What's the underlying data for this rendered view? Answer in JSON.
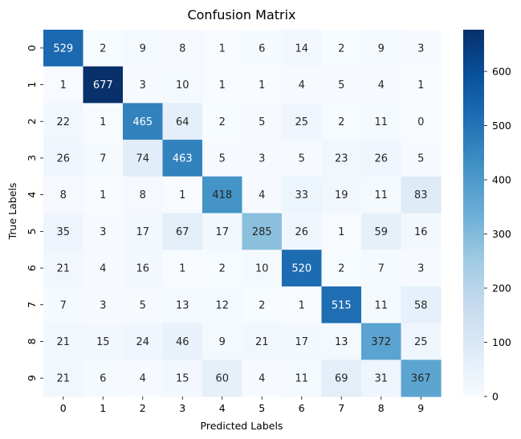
{
  "chart_data": {
    "type": "heatmap",
    "title": "Confusion Matrix",
    "xlabel": "Predicted Labels",
    "ylabel": "True Labels",
    "x_categories": [
      "0",
      "1",
      "2",
      "3",
      "4",
      "5",
      "6",
      "7",
      "8",
      "9"
    ],
    "y_categories": [
      "0",
      "1",
      "2",
      "3",
      "4",
      "5",
      "6",
      "7",
      "8",
      "9"
    ],
    "values": [
      [
        529,
        2,
        9,
        8,
        1,
        6,
        14,
        2,
        9,
        3
      ],
      [
        1,
        677,
        3,
        10,
        1,
        1,
        4,
        5,
        4,
        1
      ],
      [
        22,
        1,
        465,
        64,
        2,
        5,
        25,
        2,
        11,
        0
      ],
      [
        26,
        7,
        74,
        463,
        5,
        3,
        5,
        23,
        26,
        5
      ],
      [
        8,
        1,
        8,
        1,
        418,
        4,
        33,
        19,
        11,
        83
      ],
      [
        35,
        3,
        17,
        67,
        17,
        285,
        26,
        1,
        59,
        16
      ],
      [
        21,
        4,
        16,
        1,
        2,
        10,
        520,
        2,
        7,
        3
      ],
      [
        7,
        3,
        5,
        13,
        12,
        2,
        1,
        515,
        11,
        58
      ],
      [
        21,
        15,
        24,
        46,
        9,
        21,
        17,
        13,
        372,
        25
      ],
      [
        21,
        6,
        4,
        15,
        60,
        4,
        11,
        69,
        31,
        367
      ]
    ],
    "colormap": "Blues",
    "color_range": [
      0,
      677
    ],
    "colorbar_ticks": [
      0,
      100,
      200,
      300,
      400,
      500,
      600
    ],
    "colorbar_ticks_labels": [
      "0",
      "100",
      "200",
      "300",
      "400",
      "500",
      "600"
    ],
    "grid": false,
    "legend": "colorbar-right"
  }
}
